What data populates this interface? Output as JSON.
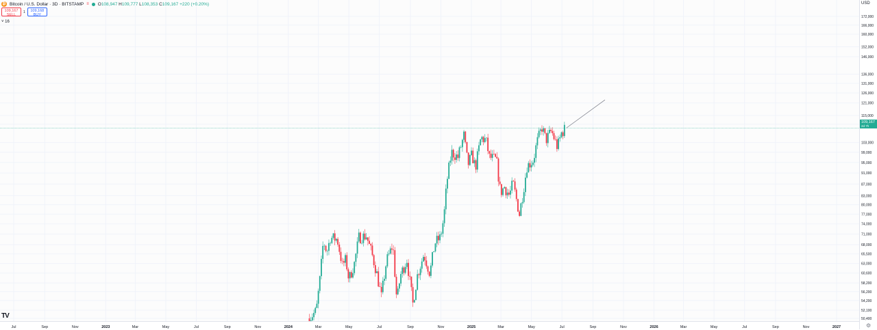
{
  "header": {
    "symbol_title": "Bitcoin / U.S. Dollar · 3D · BITSTAMP",
    "flag_label": "≡",
    "ohlc": {
      "o_label": "O",
      "o_value": "108,947",
      "h_label": "H",
      "h_value": "109,777",
      "l_label": "L",
      "l_value": "108,353",
      "c_label": "C",
      "c_value": "109,167",
      "change": "+220 (+0.20%)"
    },
    "sell_price": "109,167",
    "sell_label": "SELL",
    "spread": "1",
    "buy_price": "109,168",
    "buy_label": "BUY",
    "indicator_label": "˅ 16"
  },
  "axis": {
    "currency": "USD",
    "last_price": "109,167",
    "countdown": "2d 7h"
  },
  "colors": {
    "up": "#22ab94",
    "down": "#f23645",
    "grid": "#f0f3fa",
    "price_line": "#22ab94"
  },
  "chart_data": {
    "type": "candlestick",
    "y_scale": "log",
    "ylim": [
      50400,
      172000
    ],
    "y_ticks": [
      50400,
      52100,
      54200,
      56200,
      58200,
      60600,
      63000,
      65500,
      68000,
      71000,
      74000,
      77000,
      80000,
      83000,
      87000,
      91000,
      95000,
      99000,
      103000,
      111000,
      115000,
      121000,
      126000,
      131000,
      136000,
      146000,
      152000,
      160000,
      166000,
      172000
    ],
    "y_tick_labels": [
      "50,400",
      "52,100",
      "54,200",
      "56,200",
      "58,200",
      "60,600",
      "63,000",
      "65,500",
      "68,000",
      "71,000",
      "74,000",
      "77,000",
      "80,000",
      "83,000",
      "87,000",
      "91,000",
      "95,000",
      "99,000",
      "103,000",
      "111,000",
      "115,000",
      "121,000",
      "126,000",
      "131,000",
      "136,000",
      "146,000",
      "152,000",
      "160,000",
      "166,000",
      "172,000"
    ],
    "x_ticks": [
      "Jul",
      "Sep",
      "Nov",
      "2023",
      "Mar",
      "May",
      "Jul",
      "Sep",
      "Nov",
      "2024",
      "Mar",
      "May",
      "Jul",
      "Sep",
      "Nov",
      "2025",
      "Mar",
      "May",
      "Jul",
      "Sep",
      "Nov",
      "2026",
      "Mar",
      "May",
      "Jul",
      "Sep",
      "Nov",
      "2027"
    ],
    "x_tick_dates": [
      "2022-07-01",
      "2022-09-01",
      "2022-11-01",
      "2023-01-01",
      "2023-03-01",
      "2023-05-01",
      "2023-07-01",
      "2023-09-01",
      "2023-11-01",
      "2024-01-01",
      "2024-03-01",
      "2024-05-01",
      "2024-07-01",
      "2024-09-01",
      "2024-11-01",
      "2025-01-01",
      "2025-03-01",
      "2025-05-01",
      "2025-07-01",
      "2025-09-01",
      "2025-11-01",
      "2026-01-01",
      "2026-03-01",
      "2026-05-01",
      "2026-07-01",
      "2026-09-01",
      "2026-11-01",
      "2027-01-01"
    ],
    "last_price": 109167,
    "path_points": [
      [
        "2024-02-12",
        50400
      ],
      [
        "2024-02-26",
        52000
      ],
      [
        "2024-03-05",
        60000
      ],
      [
        "2024-03-11",
        69000
      ],
      [
        "2024-03-18",
        66000
      ],
      [
        "2024-03-25",
        70000
      ],
      [
        "2024-04-08",
        69500
      ],
      [
        "2024-04-18",
        62500
      ],
      [
        "2024-04-25",
        64000
      ],
      [
        "2024-05-01",
        59000
      ],
      [
        "2024-05-12",
        63000
      ],
      [
        "2024-05-21",
        70000
      ],
      [
        "2024-06-05",
        70500
      ],
      [
        "2024-06-15",
        66000
      ],
      [
        "2024-06-25",
        61000
      ],
      [
        "2024-07-05",
        55000
      ],
      [
        "2024-07-15",
        63500
      ],
      [
        "2024-07-28",
        68000
      ],
      [
        "2024-08-05",
        54000
      ],
      [
        "2024-08-12",
        60000
      ],
      [
        "2024-08-25",
        64000
      ],
      [
        "2024-09-06",
        53500
      ],
      [
        "2024-09-15",
        60000
      ],
      [
        "2024-09-28",
        65500
      ],
      [
        "2024-10-10",
        60500
      ],
      [
        "2024-10-20",
        68500
      ],
      [
        "2024-10-31",
        70000
      ],
      [
        "2024-11-07",
        76000
      ],
      [
        "2024-11-13",
        88000
      ],
      [
        "2024-11-22",
        99000
      ],
      [
        "2024-12-05",
        97000
      ],
      [
        "2024-12-17",
        106000
      ],
      [
        "2024-12-25",
        94000
      ],
      [
        "2025-01-02",
        98000
      ],
      [
        "2025-01-09",
        93000
      ],
      [
        "2025-01-20",
        105000
      ],
      [
        "2025-01-30",
        104000
      ],
      [
        "2025-02-06",
        97000
      ],
      [
        "2025-02-20",
        96000
      ],
      [
        "2025-02-28",
        84000
      ],
      [
        "2025-03-08",
        86000
      ],
      [
        "2025-03-18",
        83000
      ],
      [
        "2025-03-25",
        87500
      ],
      [
        "2025-04-07",
        77000
      ],
      [
        "2025-04-15",
        85000
      ],
      [
        "2025-04-22",
        93500
      ],
      [
        "2025-05-05",
        96000
      ],
      [
        "2025-05-12",
        103000
      ],
      [
        "2025-05-22",
        109500
      ],
      [
        "2025-05-30",
        104000
      ],
      [
        "2025-06-10",
        108000
      ],
      [
        "2025-06-22",
        101000
      ],
      [
        "2025-06-30",
        107000
      ],
      [
        "2025-07-08",
        109167
      ]
    ],
    "annotation_line": {
      "from": [
        "2025-07-10",
        109300
      ],
      "to": [
        "2025-09-25",
        122500
      ]
    }
  }
}
